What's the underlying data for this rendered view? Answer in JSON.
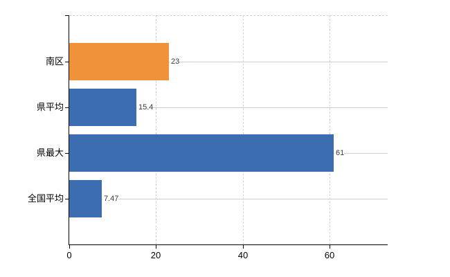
{
  "chart_data": {
    "type": "bar",
    "orientation": "horizontal",
    "title": "",
    "xlabel": "",
    "ylabel": "",
    "categories": [
      "南区",
      "県平均",
      "県最大",
      "全国平均"
    ],
    "values": [
      23,
      15.4,
      61,
      7.47
    ],
    "value_labels": [
      "23",
      "15.4",
      "61",
      "7.47"
    ],
    "bar_colors": [
      "#F0923A",
      "#3C6DB0",
      "#3C6DB0",
      "#3C6DB0"
    ],
    "x_tick_values": [
      0,
      20,
      40,
      60
    ],
    "x_tick_labels": [
      "0",
      "20",
      "40",
      "60"
    ],
    "xlim": [
      0,
      73.4
    ],
    "grid": "on",
    "legend": "none"
  },
  "colors": {
    "background": "#ffffff",
    "axis": "#000000",
    "grid_horizontal": "#cbd2c8",
    "grid_vertical": "#d6d2d6",
    "plot_top_border": "#d3cfd3",
    "highlight_bar": "#F0923A",
    "default_bar": "#3C6DB0",
    "value_label_text": "#3a3a3a",
    "tick_label_text": "#000000"
  }
}
